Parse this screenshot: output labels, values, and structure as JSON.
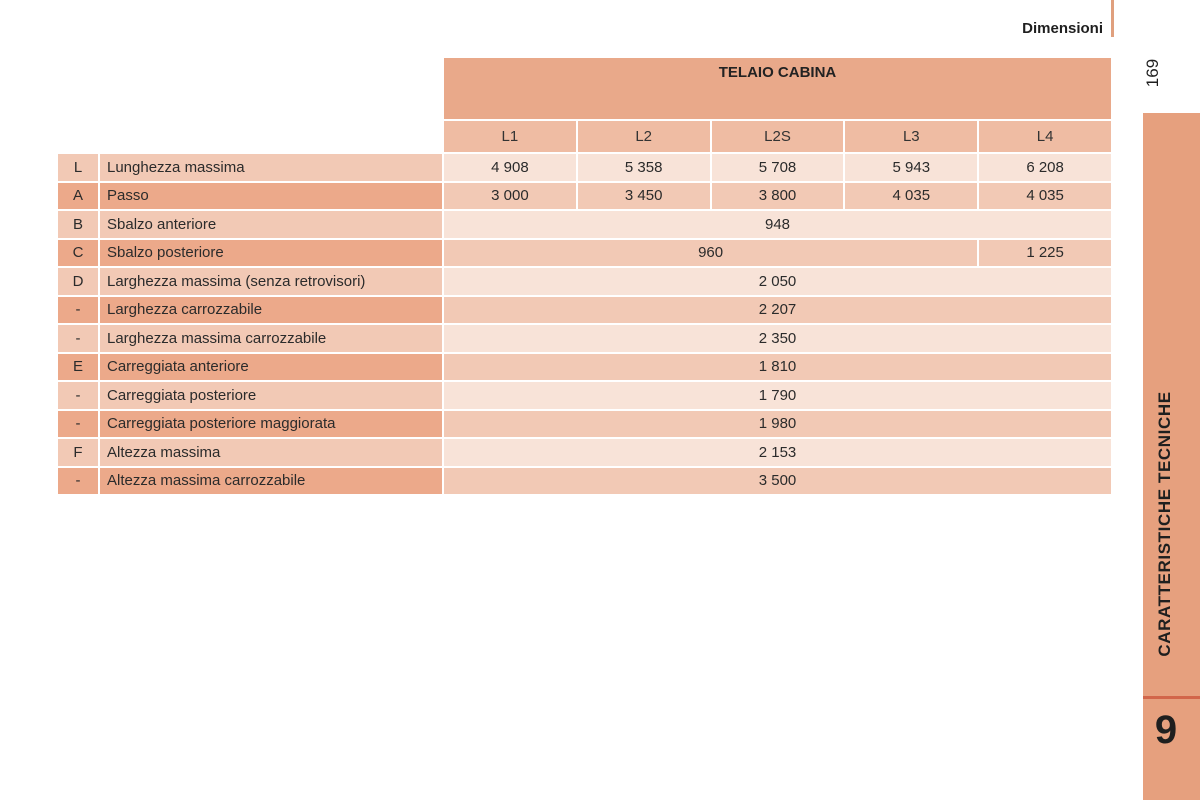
{
  "header": {
    "section_title": "Dimensioni",
    "page_number": "169"
  },
  "side_tab": {
    "label": "CARATTERISTICHE TECNICHE",
    "chapter": "9"
  },
  "table": {
    "group_header": "TELAIO CABINA",
    "columns": [
      "L1",
      "L2",
      "L2S",
      "L3",
      "L4"
    ],
    "rows": [
      {
        "code": "L",
        "label": "Lunghezza massima",
        "values": [
          "4 908",
          "5 358",
          "5 708",
          "5 943",
          "6 208"
        ]
      },
      {
        "code": "A",
        "label": "Passo",
        "values": [
          "3 000",
          "3 450",
          "3 800",
          "4 035",
          "4 035"
        ]
      },
      {
        "code": "B",
        "label": "Sbalzo anteriore",
        "values": [
          "948"
        ]
      },
      {
        "code": "C",
        "label": "Sbalzo posteriore",
        "values": [
          "960",
          "1 225"
        ]
      },
      {
        "code": "D",
        "label": "Larghezza massima (senza retrovisori)",
        "values": [
          "2 050"
        ]
      },
      {
        "code": "-",
        "label": "Larghezza carrozzabile",
        "values": [
          "2 207"
        ]
      },
      {
        "code": "-",
        "label": "Larghezza massima carrozzabile",
        "values": [
          "2 350"
        ]
      },
      {
        "code": "E",
        "label": "Carreggiata anteriore",
        "values": [
          "1 810"
        ]
      },
      {
        "code": "-",
        "label": "Carreggiata posteriore",
        "values": [
          "1 790"
        ]
      },
      {
        "code": "-",
        "label": "Carreggiata posteriore maggiorata",
        "values": [
          "1 980"
        ]
      },
      {
        "code": "F",
        "label": "Altezza massima",
        "values": [
          "2 153"
        ]
      },
      {
        "code": "-",
        "label": "Altezza massima carrozzabile",
        "values": [
          "3 500"
        ]
      }
    ]
  },
  "colors": {
    "accent": "#e6a07e",
    "row_dark": "#eca98a",
    "row_light": "#f2c9b5",
    "value_light": "#f8e3d8",
    "rule_red": "#d2664a"
  }
}
